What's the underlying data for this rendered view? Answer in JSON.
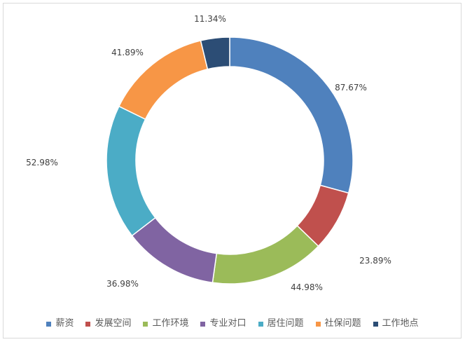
{
  "chart_data": {
    "type": "pie",
    "donut": true,
    "categories": [
      "薪资",
      "发展空间",
      "工作环境",
      "专业对口",
      "居住问题",
      "社保问题",
      "工作地点"
    ],
    "values": [
      87.67,
      23.89,
      44.98,
      36.98,
      52.98,
      41.89,
      11.34
    ],
    "data_labels": [
      "87.67%",
      "23.89%",
      "44.98%",
      "36.98%",
      "52.98%",
      "41.89%",
      "11.34%"
    ],
    "colors": [
      "#4F81BD",
      "#C0504D",
      "#9BBB59",
      "#8064A2",
      "#4BACC6",
      "#F79646",
      "#2C4D75"
    ],
    "legend_position": "bottom"
  }
}
